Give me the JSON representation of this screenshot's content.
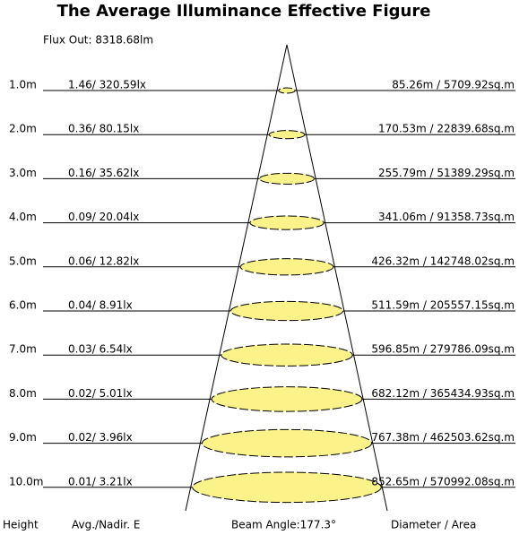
{
  "header": {
    "title": "The Average Illuminance Effective Figure",
    "flux": "Flux Out: 8318.68lm"
  },
  "rows": [
    {
      "height": "1.0m",
      "illuminance": "1.46/ 320.59lx",
      "diameter_area": "85.26m / 5709.92sq.m"
    },
    {
      "height": "2.0m",
      "illuminance": "0.36/ 80.15lx",
      "diameter_area": "170.53m / 22839.68sq.m"
    },
    {
      "height": "3.0m",
      "illuminance": "0.16/ 35.62lx",
      "diameter_area": "255.79m / 51389.29sq.m"
    },
    {
      "height": "4.0m",
      "illuminance": "0.09/ 20.04lx",
      "diameter_area": "341.06m / 91358.73sq.m"
    },
    {
      "height": "5.0m",
      "illuminance": "0.06/ 12.82lx",
      "diameter_area": "426.32m / 142748.02sq.m"
    },
    {
      "height": "6.0m",
      "illuminance": "0.04/ 8.91lx",
      "diameter_area": "511.59m / 205557.15sq.m"
    },
    {
      "height": "7.0m",
      "illuminance": "0.03/ 6.54lx",
      "diameter_area": "596.85m / 279786.09sq.m"
    },
    {
      "height": "8.0m",
      "illuminance": "0.02/ 5.01lx",
      "diameter_area": "682.12m / 365434.93sq.m"
    },
    {
      "height": "9.0m",
      "illuminance": "0.02/ 3.96lx",
      "diameter_area": "767.38m / 462503.62sq.m"
    },
    {
      "height": "10.0m",
      "illuminance": "0.01/ 3.21lx",
      "diameter_area": "852.65m / 570992.08sq.m"
    }
  ],
  "footer": {
    "height": "Height",
    "illuminance": "Avg./Nadir. E",
    "beam_angle": "Beam Angle:177.3°",
    "diameter_area": "Diameter / Area"
  }
}
